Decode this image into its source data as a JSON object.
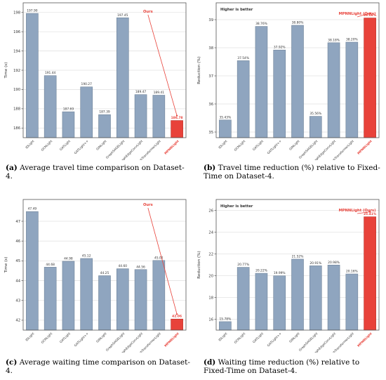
{
  "colors": {
    "bar": "#8fa5bf",
    "highlight": "#e8423a",
    "frame": "#555555",
    "grid": "#e3e3e3",
    "text": "#333333"
  },
  "captions": [
    {
      "tag": "(a)",
      "text": "Average travel time comparison on Dataset-4."
    },
    {
      "tag": "(b)",
      "text": "Travel time reduction (%) relative to Fixed-Time on Dataset-4."
    },
    {
      "tag": "(c)",
      "text": "Average waiting time comparison on Dataset-4."
    },
    {
      "tag": "(d)",
      "text": "Waiting time reduction (%) relative to Fixed-Time on Dataset-4."
    }
  ],
  "chart_data": [
    {
      "type": "bar",
      "categories": [
        "IDLight",
        "GCNLight",
        "GATLight",
        "GATLight++",
        "GINLight",
        "GraphSAGELight",
        "GraphEdgeConvLight",
        "GraphTransformerLight",
        "MPNNLight"
      ],
      "values": [
        197.9,
        191.44,
        187.69,
        190.27,
        187.39,
        197.45,
        189.47,
        189.41,
        186.78
      ],
      "value_labels": [
        "197.90",
        "191.44",
        "187.69",
        "190.27",
        "187.39",
        "197.45",
        "189.47",
        "189.41",
        "186.78"
      ],
      "highlight_index": 8,
      "ylabel": "Time (s)",
      "ylim": [
        185,
        199
      ],
      "yticks": [
        186,
        188,
        190,
        192,
        194,
        196,
        198
      ],
      "annotation": "Ours",
      "header_note": "",
      "grid": true
    },
    {
      "type": "bar",
      "categories": [
        "IDLight",
        "GCNLight",
        "GATLight",
        "GATLight++",
        "GINLight",
        "GraphSAGELight",
        "GraphEdgeConvLight",
        "GraphTransformerLight",
        "MPNNLight"
      ],
      "values": [
        35.43,
        37.54,
        38.76,
        37.92,
        38.8,
        35.56,
        38.18,
        38.2,
        39.06
      ],
      "value_labels": [
        "35.43%",
        "37.54%",
        "38.76%",
        "37.92%",
        "38.80%",
        "35.56%",
        "38.18%",
        "38.20%",
        "39.06%"
      ],
      "highlight_index": 8,
      "ylabel": "Reduction (%)",
      "ylim": [
        34.8,
        39.6
      ],
      "yticks": [
        35,
        36,
        37,
        38,
        39
      ],
      "annotation": "MPNNLight (Ours)",
      "header_note": "Higher is better",
      "grid": true
    },
    {
      "type": "bar",
      "categories": [
        "IDLight",
        "GCNLight",
        "GATLight",
        "GATLight++",
        "GINLight",
        "GraphSAGELight",
        "GraphEdgeConvLight",
        "GraphTransformerLight",
        "MPNNLight"
      ],
      "values": [
        47.49,
        44.68,
        44.98,
        45.12,
        44.25,
        44.6,
        44.56,
        45.02,
        42.06
      ],
      "value_labels": [
        "47.49",
        "44.68",
        "44.98",
        "45.12",
        "44.25",
        "44.60",
        "44.56",
        "45.02",
        "42.06"
      ],
      "highlight_index": 8,
      "ylabel": "Time (s)",
      "ylim": [
        41.5,
        48.1
      ],
      "yticks": [
        42,
        43,
        44,
        45,
        46,
        47
      ],
      "annotation": "Ours",
      "header_note": "",
      "grid": true
    },
    {
      "type": "bar",
      "categories": [
        "IDLight",
        "GCNLight",
        "GATLight",
        "GATLight++",
        "GINLight",
        "GraphSAGELight",
        "GraphEdgeConvLight",
        "GraphTransformerLight",
        "MPNNLight"
      ],
      "values": [
        15.78,
        20.77,
        20.22,
        19.99,
        21.52,
        20.91,
        20.98,
        20.16,
        25.41
      ],
      "value_labels": [
        "15.78%",
        "20.77%",
        "20.22%",
        "19.99%",
        "21.52%",
        "20.91%",
        "20.98%",
        "20.16%",
        "25.41%"
      ],
      "highlight_index": 8,
      "ylabel": "Reduction (%)",
      "ylim": [
        15,
        27
      ],
      "yticks": [
        16,
        18,
        20,
        22,
        24,
        26
      ],
      "annotation": "MPNNLight (Ours)",
      "header_note": "Higher is better",
      "grid": true
    }
  ]
}
